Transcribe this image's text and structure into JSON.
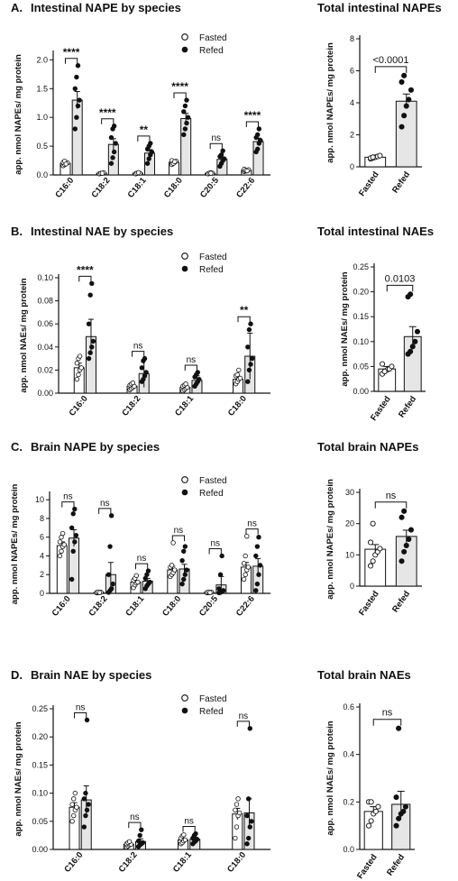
{
  "legend": {
    "fasted": "Fasted",
    "refed": "Refed"
  },
  "chart_data": [
    {
      "id": "A-left",
      "type": "bar",
      "panel_label": "A.",
      "title": "Intestinal NAPE by species",
      "ylabel": "app. nmol NAPEs/ mg protein",
      "ylim": [
        0,
        2.1
      ],
      "yticks": [
        "0.0",
        "0.5",
        "1.0",
        "1.5",
        "2.0"
      ],
      "ytick_values": [
        0,
        0.5,
        1.0,
        1.5,
        2.0
      ],
      "categories": [
        "C16:0",
        "C18:2",
        "C18:1",
        "C18:0",
        "C20:5",
        "C22:6"
      ],
      "series": [
        {
          "name": "Fasted",
          "values": [
            0.2,
            0.03,
            0.03,
            0.22,
            0.03,
            0.08
          ],
          "err": [
            0.02,
            0.01,
            0.01,
            0.02,
            0.01,
            0.01
          ],
          "points": [
            [
              0.16,
              0.18,
              0.2,
              0.21,
              0.22,
              0.24,
              0.19
            ],
            [
              0.02,
              0.03,
              0.03,
              0.04,
              0.02,
              0.03,
              0.03
            ],
            [
              0.02,
              0.03,
              0.04,
              0.03,
              0.02,
              0.03,
              0.04
            ],
            [
              0.18,
              0.2,
              0.22,
              0.24,
              0.25,
              0.2,
              0.23
            ],
            [
              0.02,
              0.03,
              0.04,
              0.03,
              0.02,
              0.03,
              0.03
            ],
            [
              0.06,
              0.07,
              0.08,
              0.09,
              0.1,
              0.08,
              0.07
            ]
          ]
        },
        {
          "name": "Refed",
          "values": [
            1.3,
            0.53,
            0.38,
            0.98,
            0.27,
            0.58
          ],
          "err": [
            0.15,
            0.1,
            0.06,
            0.09,
            0.04,
            0.06
          ],
          "points": [
            [
              0.8,
              1.0,
              1.2,
              1.3,
              1.5,
              1.7,
              1.9
            ],
            [
              0.2,
              0.3,
              0.4,
              0.55,
              0.65,
              0.8,
              0.85
            ],
            [
              0.2,
              0.28,
              0.35,
              0.4,
              0.45,
              0.5,
              0.55
            ],
            [
              0.7,
              0.8,
              0.9,
              1.0,
              1.1,
              1.2,
              1.3
            ],
            [
              0.15,
              0.2,
              0.25,
              0.28,
              0.32,
              0.35,
              0.42
            ],
            [
              0.4,
              0.45,
              0.55,
              0.6,
              0.65,
              0.7,
              0.8
            ]
          ]
        }
      ],
      "significance": [
        "****",
        "****",
        "**",
        "****",
        "ns",
        "****"
      ]
    },
    {
      "id": "A-right",
      "type": "bar",
      "title": "Total intestinal NAPEs",
      "ylabel": "app. nmol NAPEs/ mg protein",
      "ylim": [
        0,
        8
      ],
      "yticks": [
        "0",
        "2",
        "4",
        "6",
        "8"
      ],
      "ytick_values": [
        0,
        2,
        4,
        6,
        8
      ],
      "categories": [
        "Fasted",
        "Refed"
      ],
      "values": [
        0.6,
        4.1
      ],
      "err": [
        0.05,
        0.45
      ],
      "points": [
        [
          0.5,
          0.55,
          0.6,
          0.65,
          0.7,
          0.55,
          0.6
        ],
        [
          2.5,
          3.2,
          3.8,
          4.2,
          4.8,
          5.3,
          5.7
        ]
      ],
      "pvalue": "<0.0001"
    },
    {
      "id": "B-left",
      "type": "bar",
      "panel_label": "B.",
      "title": "Intestinal NAE by species",
      "ylabel": "app. nmol NAEs/ mg protein",
      "ylim": [
        0,
        0.1
      ],
      "yticks": [
        "0.00",
        "0.02",
        "0.04",
        "0.06",
        "0.08",
        "0.10"
      ],
      "ytick_values": [
        0,
        0.02,
        0.04,
        0.06,
        0.08,
        0.1
      ],
      "categories": [
        "C16:0",
        "C18:2",
        "C18:1",
        "C18:0"
      ],
      "series": [
        {
          "name": "Fasted",
          "values": [
            0.022,
            0.006,
            0.005,
            0.012
          ],
          "err": [
            0.004,
            0.002,
            0.001,
            0.002
          ],
          "points": [
            [
              0.012,
              0.016,
              0.02,
              0.022,
              0.026,
              0.03,
              0.032
            ],
            [
              0.003,
              0.004,
              0.005,
              0.006,
              0.007,
              0.008,
              0.009
            ],
            [
              0.002,
              0.003,
              0.004,
              0.005,
              0.006,
              0.007,
              0.008
            ],
            [
              0.008,
              0.01,
              0.012,
              0.013,
              0.015,
              0.016,
              0.02
            ]
          ]
        },
        {
          "name": "Refed",
          "values": [
            0.049,
            0.017,
            0.011,
            0.032
          ],
          "err": [
            0.015,
            0.012,
            0.004,
            0.02
          ],
          "points": [
            [
              0.03,
              0.035,
              0.04,
              0.045,
              0.06,
              0.085,
              0.095
            ],
            [
              0.01,
              0.012,
              0.015,
              0.018,
              0.022,
              0.028,
              0.03
            ],
            [
              0.006,
              0.008,
              0.01,
              0.012,
              0.014,
              0.016,
              0.018
            ],
            [
              0.01,
              0.02,
              0.025,
              0.03,
              0.04,
              0.055,
              0.06
            ]
          ]
        }
      ],
      "significance": [
        "****",
        "ns",
        "ns",
        "**"
      ]
    },
    {
      "id": "B-right",
      "type": "bar",
      "title": "Total intestinal NAEs",
      "ylabel": "app. nmol NAEs/ mg protein",
      "ylim": [
        0,
        0.25
      ],
      "yticks": [
        "0.00",
        "0.05",
        "0.10",
        "0.15",
        "0.20",
        "0.25"
      ],
      "ytick_values": [
        0,
        0.05,
        0.1,
        0.15,
        0.2,
        0.25
      ],
      "categories": [
        "Fasted",
        "Refed"
      ],
      "values": [
        0.045,
        0.11
      ],
      "err": [
        0.005,
        0.02
      ],
      "points": [
        [
          0.035,
          0.04,
          0.043,
          0.045,
          0.05,
          0.055,
          0.04
        ],
        [
          0.075,
          0.08,
          0.09,
          0.1,
          0.12,
          0.19,
          0.195
        ]
      ],
      "pvalue": "0.0103"
    },
    {
      "id": "C-left",
      "type": "bar",
      "panel_label": "C.",
      "title": "Brain NAPE by species",
      "ylabel": "app. nmol NAPEs/ mg protein",
      "ylim": [
        0,
        10.5
      ],
      "yticks": [
        "0",
        "2",
        "4",
        "6",
        "8",
        "10"
      ],
      "ytick_values": [
        0,
        2,
        4,
        6,
        8,
        10
      ],
      "categories": [
        "C16:0",
        "C18:2",
        "C18:1",
        "C18:0",
        "C20:5",
        "C22:6"
      ],
      "series": [
        {
          "name": "Fasted",
          "values": [
            5.1,
            0.1,
            1.2,
            2.5,
            0.1,
            2.8
          ],
          "err": [
            0.4,
            0.05,
            0.2,
            0.4,
            0.05,
            0.5
          ],
          "points": [
            [
              4.0,
              4.5,
              5.0,
              5.2,
              5.5,
              6.0,
              6.4
            ],
            [
              0.05,
              0.08,
              0.1,
              0.12,
              0.1,
              0.15,
              0.08
            ],
            [
              0.6,
              0.9,
              1.1,
              1.2,
              1.4,
              1.6,
              1.9
            ],
            [
              1.8,
              2.0,
              2.2,
              2.5,
              2.8,
              3.0,
              5.4
            ],
            [
              0.05,
              0.08,
              0.1,
              0.12,
              0.1,
              0.15,
              0.08
            ],
            [
              1.5,
              2.0,
              2.5,
              2.8,
              3.2,
              4.0,
              6.1
            ]
          ]
        },
        {
          "name": "Refed",
          "values": [
            5.9,
            2.0,
            1.3,
            2.6,
            0.9,
            2.9
          ],
          "err": [
            0.9,
            1.3,
            0.3,
            0.5,
            0.9,
            0.8
          ],
          "points": [
            [
              1.5,
              4.5,
              5.5,
              6.2,
              7.0,
              8.5,
              9.0
            ],
            [
              0.1,
              0.3,
              0.5,
              1.0,
              2.0,
              5.0,
              8.3
            ],
            [
              0.5,
              0.8,
              1.0,
              1.2,
              1.6,
              2.0,
              2.4
            ],
            [
              1.0,
              1.5,
              2.0,
              2.5,
              3.5,
              4.5,
              5.0
            ],
            [
              0.05,
              0.1,
              0.2,
              0.3,
              0.5,
              2.0,
              4.0
            ],
            [
              0.3,
              1.0,
              2.0,
              3.0,
              4.0,
              5.0,
              6.0
            ]
          ]
        }
      ],
      "significance": [
        "ns",
        "ns",
        "ns",
        "ns",
        "ns",
        "ns"
      ]
    },
    {
      "id": "C-right",
      "type": "bar",
      "title": "Total brain NAPEs",
      "ylabel": "app. nmol NAPEs/ mg protein",
      "ylim": [
        0,
        30
      ],
      "yticks": [
        "0",
        "10",
        "20",
        "30"
      ],
      "ytick_values": [
        0,
        10,
        20,
        30
      ],
      "categories": [
        "Fasted",
        "Refed"
      ],
      "values": [
        11.8,
        15.9
      ],
      "err": [
        1.5,
        2.0
      ],
      "points": [
        [
          6.5,
          8.0,
          10.0,
          11.0,
          12.0,
          14.0,
          20.0
        ],
        [
          8.0,
          11.0,
          13.0,
          15.0,
          18.0,
          22.0,
          24.0
        ]
      ],
      "pvalue": "ns"
    },
    {
      "id": "D-left",
      "type": "bar",
      "panel_label": "D.",
      "title": "Brain NAE by species",
      "ylabel": "app. nmol NAEs/ mg protein",
      "ylim": [
        0,
        0.25
      ],
      "yticks": [
        "0.00",
        "0.05",
        "0.10",
        "0.15",
        "0.20",
        "0.25"
      ],
      "ytick_values": [
        0,
        0.05,
        0.1,
        0.15,
        0.2,
        0.25
      ],
      "categories": [
        "C16:0",
        "C18:2",
        "C18:1",
        "C18:0"
      ],
      "series": [
        {
          "name": "Fasted",
          "values": [
            0.075,
            0.009,
            0.017,
            0.063
          ],
          "err": [
            0.008,
            0.002,
            0.003,
            0.01
          ],
          "points": [
            [
              0.05,
              0.06,
              0.07,
              0.075,
              0.08,
              0.09,
              0.1
            ],
            [
              0.004,
              0.006,
              0.008,
              0.009,
              0.01,
              0.012,
              0.014
            ],
            [
              0.01,
              0.012,
              0.015,
              0.017,
              0.02,
              0.024,
              0.026
            ],
            [
              0.02,
              0.04,
              0.06,
              0.065,
              0.07,
              0.08,
              0.09
            ]
          ]
        },
        {
          "name": "Refed",
          "values": [
            0.088,
            0.014,
            0.018,
            0.065
          ],
          "err": [
            0.025,
            0.005,
            0.004,
            0.025
          ],
          "points": [
            [
              0.04,
              0.06,
              0.07,
              0.08,
              0.09,
              0.1,
              0.23
            ],
            [
              0.005,
              0.008,
              0.01,
              0.012,
              0.015,
              0.025,
              0.035
            ],
            [
              0.01,
              0.013,
              0.015,
              0.018,
              0.02,
              0.025,
              0.028
            ],
            [
              0.01,
              0.02,
              0.04,
              0.05,
              0.06,
              0.09,
              0.215
            ]
          ]
        }
      ],
      "significance": [
        "ns",
        "ns",
        "ns",
        "ns"
      ]
    },
    {
      "id": "D-right",
      "type": "bar",
      "title": "Total brain NAEs",
      "ylabel": "app. nmol NAEs/ mg protein",
      "ylim": [
        0,
        0.6
      ],
      "yticks": [
        "0.0",
        "0.2",
        "0.4",
        "0.6"
      ],
      "ytick_values": [
        0,
        0.2,
        0.4,
        0.6
      ],
      "categories": [
        "Fasted",
        "Refed"
      ],
      "values": [
        0.16,
        0.19
      ],
      "err": [
        0.02,
        0.055
      ],
      "points": [
        [
          0.1,
          0.12,
          0.15,
          0.16,
          0.18,
          0.2,
          0.2
        ],
        [
          0.1,
          0.13,
          0.15,
          0.16,
          0.18,
          0.22,
          0.51
        ]
      ],
      "pvalue": "ns"
    }
  ]
}
